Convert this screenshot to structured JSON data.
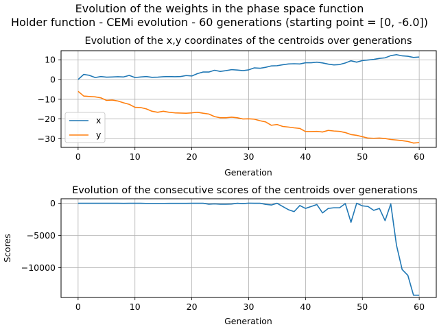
{
  "suptitle": {
    "line1": "Evolution of the weights in the phase space  function",
    "line2": "Holder function - CEMi evolution - 60 generations (starting point = [0, -6.0])"
  },
  "chart_data": [
    {
      "type": "line",
      "title": "Evolution of the x,y coordinates of the centroids over generations",
      "xlabel": "Generation",
      "ylabel": "",
      "xlim": [
        -3,
        63
      ],
      "ylim": [
        -34.4,
        14.6
      ],
      "xticks": [
        0,
        10,
        20,
        30,
        40,
        50,
        60
      ],
      "yticks": [
        10,
        0,
        -10,
        -20,
        -30
      ],
      "grid": true,
      "legend": "center-left",
      "x": [
        0,
        1,
        2,
        3,
        4,
        5,
        6,
        7,
        8,
        9,
        10,
        11,
        12,
        13,
        14,
        15,
        16,
        17,
        18,
        19,
        20,
        21,
        22,
        23,
        24,
        25,
        26,
        27,
        28,
        29,
        30,
        31,
        32,
        33,
        34,
        35,
        36,
        37,
        38,
        39,
        40,
        41,
        42,
        43,
        44,
        45,
        46,
        47,
        48,
        49,
        50,
        51,
        52,
        53,
        54,
        55,
        56,
        57,
        58,
        59,
        60
      ],
      "series": [
        {
          "name": "x",
          "color": "#1f77b4",
          "values": [
            0,
            2.6,
            2.1,
            1.0,
            1.5,
            1.2,
            1.3,
            1.4,
            1.3,
            2.1,
            1.0,
            1.3,
            1.5,
            1.1,
            1.2,
            1.4,
            1.5,
            1.4,
            1.5,
            2.0,
            1.8,
            3.0,
            3.8,
            3.8,
            4.7,
            4.1,
            4.5,
            5.0,
            4.8,
            4.5,
            4.9,
            5.9,
            5.7,
            6.2,
            6.9,
            7.0,
            7.5,
            7.9,
            8.0,
            7.9,
            8.5,
            8.5,
            8.8,
            8.4,
            7.8,
            7.4,
            7.6,
            8.4,
            9.5,
            8.8,
            9.6,
            9.9,
            10.2,
            10.7,
            11.0,
            12.1,
            12.6,
            12.0,
            11.8,
            11.2,
            11.4
          ]
        },
        {
          "name": "y",
          "color": "#ff7f0e",
          "values": [
            -6.0,
            -8.4,
            -8.6,
            -8.8,
            -9.3,
            -10.6,
            -10.4,
            -10.9,
            -11.8,
            -12.6,
            -14.1,
            -14.2,
            -14.9,
            -16.1,
            -16.6,
            -16.1,
            -16.6,
            -16.9,
            -17.0,
            -17.1,
            -16.9,
            -16.6,
            -17.1,
            -17.5,
            -18.8,
            -19.4,
            -19.4,
            -19.1,
            -19.4,
            -20.0,
            -19.9,
            -20.1,
            -20.9,
            -21.5,
            -23.2,
            -22.8,
            -23.8,
            -24.1,
            -24.5,
            -24.8,
            -26.4,
            -26.4,
            -26.3,
            -26.6,
            -25.8,
            -26.1,
            -26.3,
            -26.9,
            -27.9,
            -28.3,
            -29.0,
            -29.7,
            -29.8,
            -29.7,
            -29.9,
            -30.4,
            -30.7,
            -31.0,
            -31.4,
            -32.2,
            -32.0
          ]
        }
      ]
    },
    {
      "type": "line",
      "title": "Evolution of the consecutive scores of the centroids over generations",
      "xlabel": "Generation",
      "ylabel": "Scores",
      "xlim": [
        -3,
        63
      ],
      "ylim": [
        -14650,
        700
      ],
      "xticks": [
        0,
        10,
        20,
        30,
        40,
        50,
        60
      ],
      "yticks": [
        0,
        -5000,
        -10000
      ],
      "ytick_labels": [
        "0",
        "−5000",
        "−10000"
      ],
      "grid": true,
      "x": [
        0,
        1,
        2,
        3,
        4,
        5,
        6,
        7,
        8,
        9,
        10,
        11,
        12,
        13,
        14,
        15,
        16,
        17,
        18,
        19,
        20,
        21,
        22,
        23,
        24,
        25,
        26,
        27,
        28,
        29,
        30,
        31,
        32,
        33,
        34,
        35,
        36,
        37,
        38,
        39,
        40,
        41,
        42,
        43,
        44,
        45,
        46,
        47,
        48,
        49,
        50,
        51,
        52,
        53,
        54,
        55,
        56,
        57,
        58,
        59,
        60
      ],
      "series": [
        {
          "name": "score",
          "color": "#1f77b4",
          "values": [
            0,
            0,
            0,
            0,
            0,
            0,
            0,
            0,
            -10,
            0,
            0,
            0,
            -20,
            -20,
            -20,
            -20,
            -10,
            -10,
            -10,
            -10,
            0,
            0,
            0,
            -150,
            -100,
            -150,
            -150,
            -120,
            0,
            -50,
            20,
            0,
            0,
            -170,
            -270,
            0,
            -500,
            -1000,
            -1300,
            -350,
            -800,
            -500,
            -200,
            -1500,
            -800,
            -700,
            -700,
            -50,
            -2950,
            0,
            -400,
            -500,
            -1100,
            -800,
            -2700,
            -100,
            -6500,
            -10300,
            -11200,
            -14300,
            -14300
          ]
        }
      ]
    }
  ]
}
